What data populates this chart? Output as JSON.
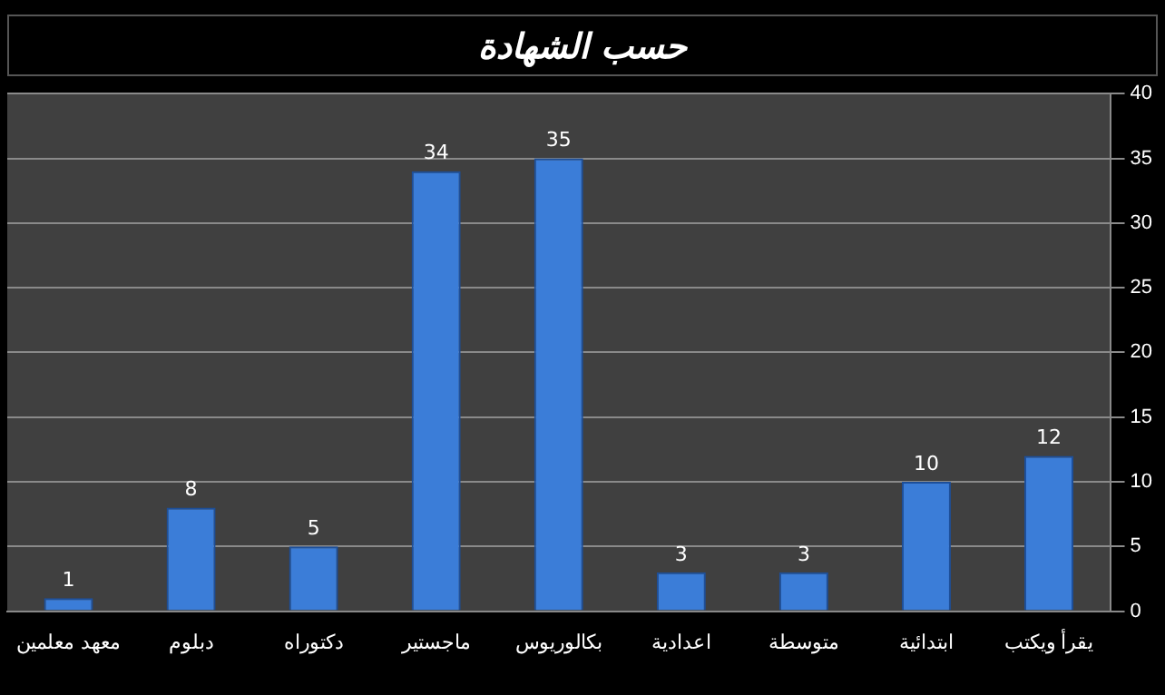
{
  "chart_data": {
    "type": "bar",
    "title": "حسب الشهادة",
    "categories": [
      "معهد معلمين",
      "دبلوم",
      "دكتوراه",
      "ماجستير",
      "بكالوريوس",
      "اعدادية",
      "متوسطة",
      "ابتدائية",
      "يقرأ ويكتب"
    ],
    "values": [
      1,
      8,
      5,
      34,
      35,
      3,
      3,
      10,
      12
    ],
    "color": "#3b7dd8",
    "ylim": [
      0,
      40
    ],
    "yticks": [
      0,
      5,
      10,
      15,
      20,
      25,
      30,
      35,
      40
    ],
    "grid": "y",
    "data_labels": true
  }
}
